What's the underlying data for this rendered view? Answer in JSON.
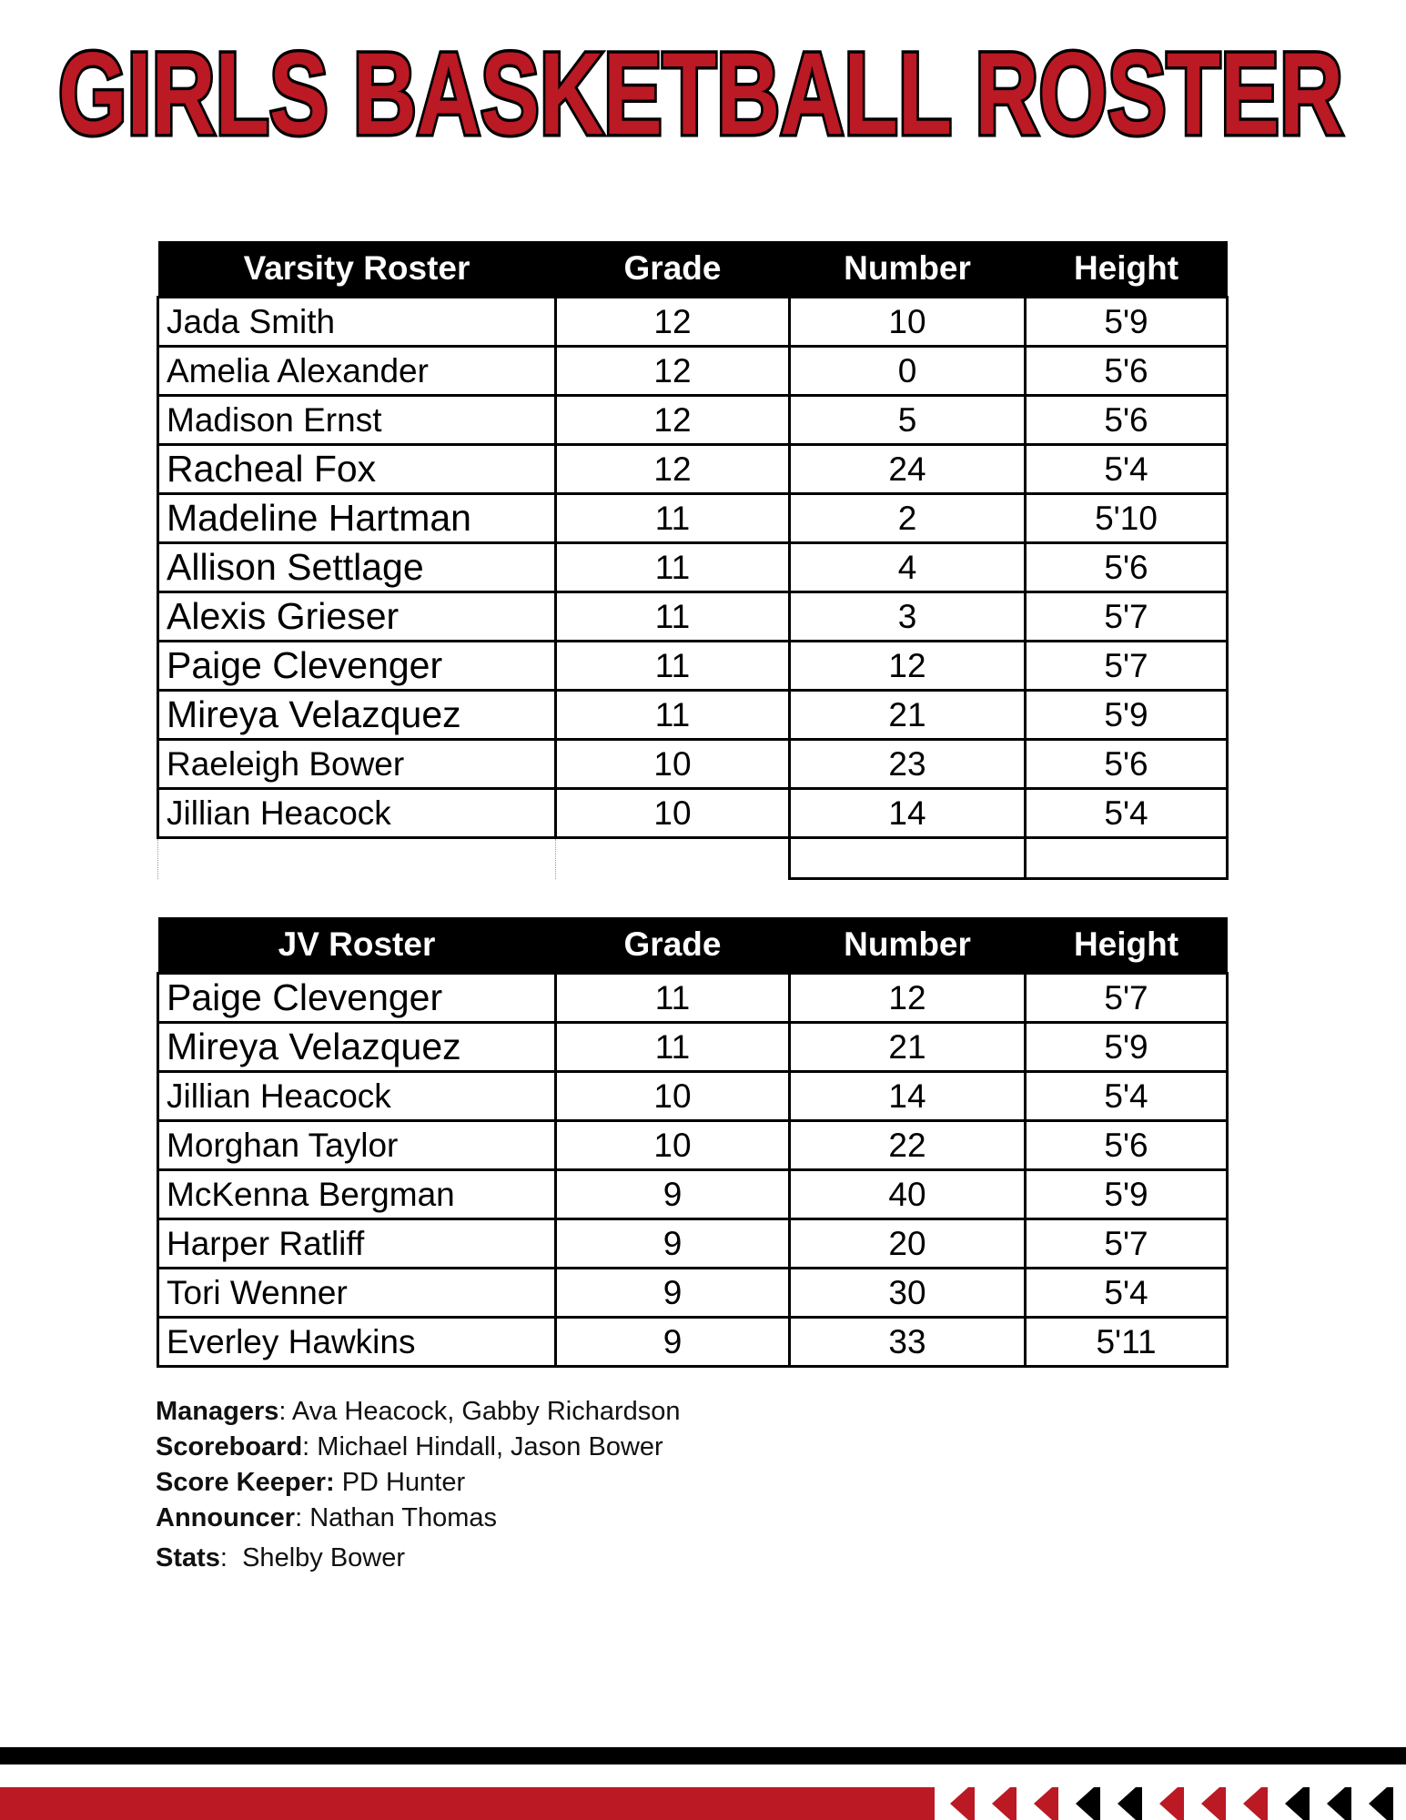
{
  "title": "GIRLS BASKETBALL ROSTER",
  "colors": {
    "accent_red": "#bb1924",
    "black": "#000000"
  },
  "varsity": {
    "headers": [
      "Varsity Roster",
      "Grade",
      "Number",
      "Height"
    ],
    "rows": [
      {
        "name": "Jada Smith",
        "grade": "12",
        "number": "10",
        "height": "5'9"
      },
      {
        "name": "Amelia Alexander",
        "grade": "12",
        "number": "0",
        "height": "5'6"
      },
      {
        "name": "Madison Ernst",
        "grade": "12",
        "number": "5",
        "height": "5'6"
      },
      {
        "name": "Racheal Fox",
        "grade": "12",
        "number": "24",
        "height": "5'4"
      },
      {
        "name": "Madeline Hartman",
        "grade": "11",
        "number": "2",
        "height": "5'10"
      },
      {
        "name": "Allison Settlage",
        "grade": "11",
        "number": "4",
        "height": "5'6"
      },
      {
        "name": "Alexis Grieser",
        "grade": "11",
        "number": "3",
        "height": "5'7"
      },
      {
        "name": "Paige Clevenger",
        "grade": "11",
        "number": "12",
        "height": "5'7"
      },
      {
        "name": "Mireya Velazquez",
        "grade": "11",
        "number": "21",
        "height": "5'9"
      },
      {
        "name": "Raeleigh Bower",
        "grade": "10",
        "number": "23",
        "height": "5'6"
      },
      {
        "name": "Jillian Heacock",
        "grade": "10",
        "number": "14",
        "height": "5'4"
      }
    ]
  },
  "jv": {
    "headers": [
      "JV Roster",
      "Grade",
      "Number",
      "Height"
    ],
    "rows": [
      {
        "name": "Paige Clevenger",
        "grade": "11",
        "number": "12",
        "height": "5'7"
      },
      {
        "name": "Mireya Velazquez",
        "grade": "11",
        "number": "21",
        "height": "5'9"
      },
      {
        "name": "Jillian Heacock",
        "grade": "10",
        "number": "14",
        "height": "5'4"
      },
      {
        "name": "Morghan Taylor",
        "grade": "10",
        "number": "22",
        "height": "5'6"
      },
      {
        "name": "McKenna Bergman",
        "grade": "9",
        "number": "40",
        "height": "5'9"
      },
      {
        "name": "Harper Ratliff",
        "grade": "9",
        "number": "20",
        "height": "5'7"
      },
      {
        "name": "Tori Wenner",
        "grade": "9",
        "number": "30",
        "height": "5'4"
      },
      {
        "name": "Everley Hawkins",
        "grade": "9",
        "number": "33",
        "height": "5'11"
      }
    ]
  },
  "staff": [
    {
      "label": "Managers",
      "sep": ": ",
      "value": "Ava Heacock, Gabby Richardson"
    },
    {
      "label": "Scoreboard",
      "sep": ": ",
      "value": "Michael Hindall, Jason Bower"
    },
    {
      "label": "Score Keeper:",
      "sep": " ",
      "value": "PD Hunter"
    },
    {
      "label": "Announcer",
      "sep": ": ",
      "value": "Nathan Thomas"
    },
    {
      "label": "Stats",
      "sep": ":  ",
      "value": "Shelby Bower"
    }
  ],
  "chevron_colors": [
    "red",
    "red",
    "red",
    "black",
    "black",
    "red",
    "red",
    "red",
    "black",
    "black",
    "black"
  ]
}
